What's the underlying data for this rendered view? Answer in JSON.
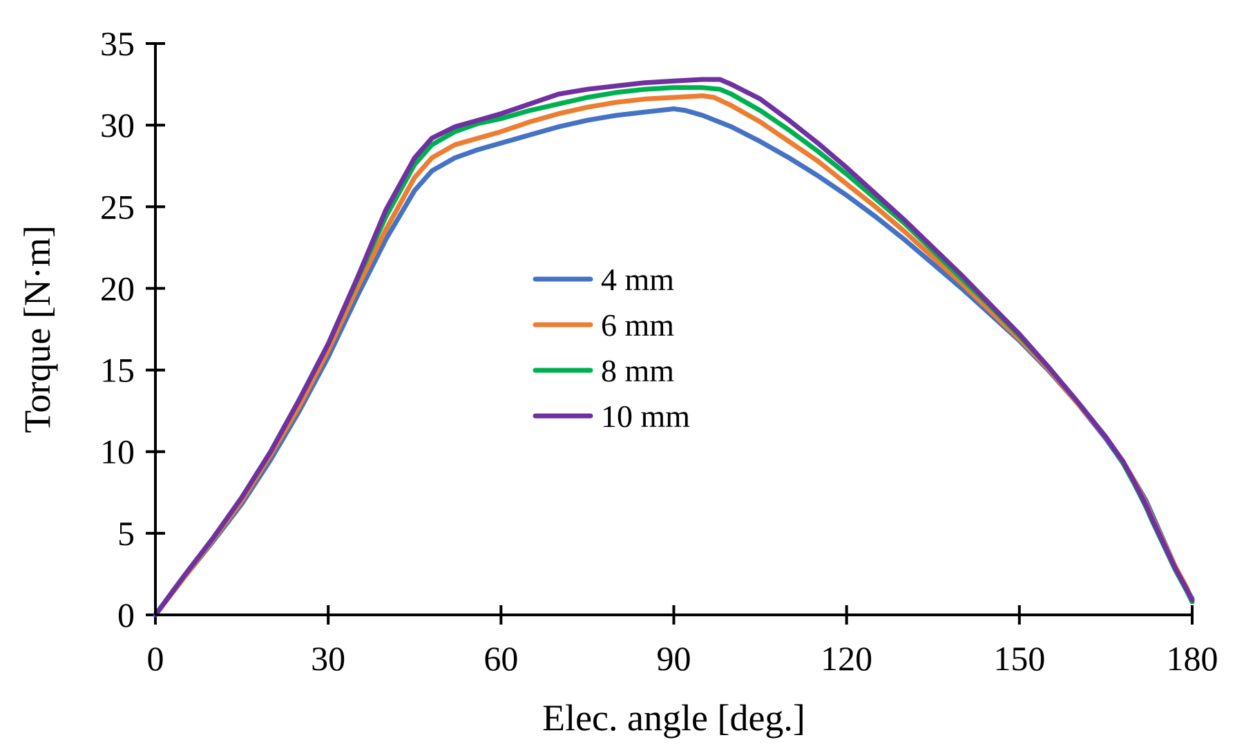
{
  "chart_data": {
    "type": "line",
    "title": "",
    "xlabel": "Elec. angle [deg.]",
    "ylabel": "Torque [N·m]",
    "xlim": [
      0,
      180
    ],
    "ylim": [
      0,
      35
    ],
    "xticks": [
      0,
      30,
      60,
      90,
      120,
      150,
      180
    ],
    "yticks": [
      0,
      5,
      10,
      15,
      20,
      25,
      30,
      35
    ],
    "grid": false,
    "legend_position": "center",
    "series": [
      {
        "name": "4 mm",
        "color": "#4472C4",
        "x": [
          0,
          5,
          10,
          15,
          20,
          25,
          30,
          35,
          40,
          45,
          48,
          52,
          56,
          60,
          65,
          70,
          75,
          80,
          85,
          90,
          92,
          95,
          100,
          105,
          110,
          115,
          120,
          125,
          130,
          135,
          140,
          145,
          150,
          155,
          160,
          165,
          168,
          170,
          171,
          172,
          173,
          175,
          177,
          179,
          180
        ],
        "y": [
          0,
          2.3,
          4.5,
          6.8,
          9.5,
          12.5,
          15.8,
          19.5,
          23.0,
          26.0,
          27.2,
          28.0,
          28.5,
          28.9,
          29.4,
          29.9,
          30.3,
          30.6,
          30.8,
          31.0,
          30.9,
          30.6,
          29.9,
          29.0,
          28.0,
          26.9,
          25.7,
          24.4,
          23.0,
          21.5,
          20.0,
          18.4,
          16.8,
          15.0,
          13.0,
          10.8,
          9.3,
          8.2,
          7.6,
          7.0,
          6.2,
          4.6,
          3.0,
          1.6,
          1.0
        ]
      },
      {
        "name": "6 mm",
        "color": "#ED7D31",
        "x": [
          0,
          5,
          10,
          15,
          20,
          25,
          30,
          35,
          40,
          45,
          48,
          52,
          56,
          60,
          65,
          70,
          75,
          80,
          85,
          90,
          95,
          97,
          100,
          105,
          110,
          115,
          120,
          125,
          130,
          135,
          140,
          145,
          150,
          155,
          160,
          165,
          168,
          170,
          171,
          172,
          173,
          175,
          177,
          179,
          180
        ],
        "y": [
          0,
          2.3,
          4.6,
          7.0,
          9.8,
          12.8,
          16.2,
          20.0,
          23.6,
          26.8,
          28.0,
          28.8,
          29.2,
          29.6,
          30.2,
          30.7,
          31.1,
          31.4,
          31.6,
          31.7,
          31.8,
          31.7,
          31.2,
          30.2,
          29.0,
          27.8,
          26.4,
          25.0,
          23.5,
          21.9,
          20.3,
          18.6,
          16.9,
          15.1,
          13.0,
          10.9,
          9.4,
          8.2,
          7.5,
          6.8,
          6.0,
          4.5,
          3.0,
          1.7,
          0.9
        ]
      },
      {
        "name": "8 mm",
        "color": "#00B050",
        "x": [
          0,
          5,
          10,
          15,
          20,
          25,
          30,
          35,
          40,
          45,
          48,
          52,
          56,
          60,
          65,
          70,
          75,
          80,
          85,
          90,
          95,
          98,
          100,
          105,
          110,
          115,
          120,
          125,
          130,
          135,
          140,
          145,
          150,
          155,
          160,
          165,
          168,
          170,
          171,
          172,
          173,
          175,
          177,
          179,
          180
        ],
        "y": [
          0,
          2.4,
          4.7,
          7.2,
          10.0,
          13.2,
          16.6,
          20.5,
          24.4,
          27.6,
          28.8,
          29.6,
          30.1,
          30.4,
          30.9,
          31.3,
          31.7,
          32.0,
          32.2,
          32.3,
          32.3,
          32.2,
          31.9,
          30.9,
          29.7,
          28.4,
          27.0,
          25.5,
          24.0,
          22.3,
          20.6,
          18.9,
          17.1,
          15.2,
          13.1,
          10.9,
          9.3,
          8.0,
          7.3,
          6.6,
          5.8,
          4.3,
          2.8,
          1.5,
          0.8
        ]
      },
      {
        "name": "10 mm",
        "color": "#7030A0",
        "x": [
          0,
          5,
          10,
          15,
          20,
          25,
          30,
          35,
          40,
          45,
          48,
          52,
          56,
          60,
          65,
          70,
          75,
          80,
          85,
          90,
          95,
          98,
          100,
          105,
          110,
          115,
          120,
          125,
          130,
          135,
          140,
          145,
          150,
          155,
          160,
          165,
          168,
          170,
          171,
          172,
          173,
          175,
          177,
          179,
          180
        ],
        "y": [
          0,
          2.4,
          4.7,
          7.2,
          10.0,
          13.2,
          16.6,
          20.6,
          24.8,
          28.0,
          29.2,
          29.9,
          30.3,
          30.7,
          31.3,
          31.9,
          32.2,
          32.4,
          32.6,
          32.7,
          32.8,
          32.8,
          32.5,
          31.6,
          30.3,
          28.9,
          27.4,
          25.8,
          24.2,
          22.5,
          20.8,
          19.0,
          17.2,
          15.2,
          13.1,
          10.9,
          9.4,
          8.1,
          7.4,
          6.7,
          5.9,
          4.4,
          2.9,
          1.6,
          0.9
        ]
      }
    ]
  }
}
